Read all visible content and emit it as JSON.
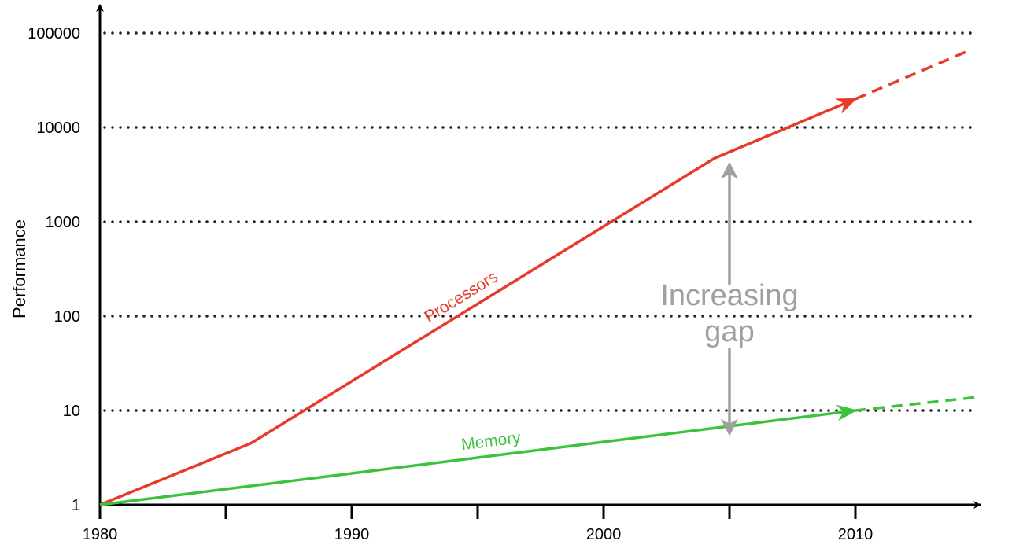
{
  "chart_data": {
    "type": "line",
    "title": "",
    "xlabel": "",
    "ylabel": "Performance",
    "y_scale": "log",
    "xlim": [
      1980,
      2015
    ],
    "ylim": [
      1,
      100000
    ],
    "x_ticks": [
      1980,
      1990,
      2000,
      2010
    ],
    "x_minor_ticks": [
      1985,
      1995,
      2005
    ],
    "y_ticks": [
      {
        "value": 1,
        "label": "1"
      },
      {
        "value": 10,
        "label": "10"
      },
      {
        "value": 100,
        "label": "100"
      },
      {
        "value": 1000,
        "label": "1000"
      },
      {
        "value": 10000,
        "label": "10000"
      },
      {
        "value": 100000,
        "label": "100000"
      }
    ],
    "grid": "horizontal dotted",
    "series": [
      {
        "name": "Processors",
        "color": "#e8392a",
        "points": [
          {
            "x": 1980,
            "y": 1
          },
          {
            "x": 1986,
            "y": 4.5
          },
          {
            "x": 2004.4,
            "y": 4700
          },
          {
            "x": 2010,
            "y": 20000
          }
        ],
        "projection": [
          {
            "x": 2010,
            "y": 20000
          },
          {
            "x": 2014.5,
            "y": 65000
          }
        ]
      },
      {
        "name": "Memory",
        "color": "#3cc33c",
        "points": [
          {
            "x": 1980,
            "y": 1
          },
          {
            "x": 2010,
            "y": 10
          }
        ],
        "projection": [
          {
            "x": 2010,
            "y": 10
          },
          {
            "x": 2015,
            "y": 14
          }
        ]
      }
    ],
    "annotation": {
      "lines": [
        "Increasing",
        "gap"
      ],
      "x": 2005,
      "y_from": 4500,
      "y_to": 6,
      "color": "#a0a0a0"
    }
  }
}
